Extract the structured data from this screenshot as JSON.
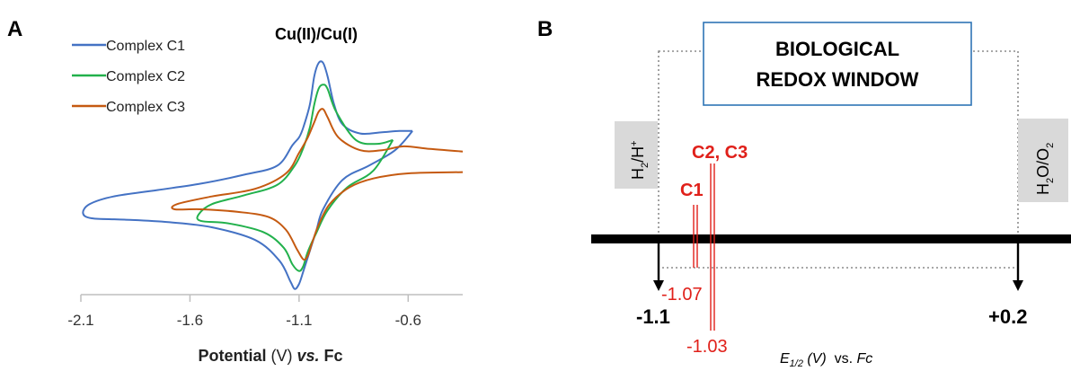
{
  "panel_a": {
    "label": "A",
    "title": "Cu(II)/Cu(I)",
    "xlabel_bold": "Potential",
    "xlabel_unit": " (V) ",
    "xlabel_vs": "vs.",
    "xlabel_ref": " Fc"
  },
  "panel_b": {
    "label": "B",
    "window_line1": "BIOLOGICAL",
    "window_line2": "REDOX WINDOW",
    "left_couple": "H2/H+",
    "right_couple": "H2O/O2",
    "left_limit": "-1.1",
    "right_limit": "+0.2",
    "marker_c1_label": "C1",
    "marker_c1_value": "-1.07",
    "marker_c23_label": "C2, C3",
    "marker_c23_value": "-1.03",
    "axis_caption_main": "E",
    "axis_caption_sub": "1/2",
    "axis_caption_unit": " (V)",
    "axis_caption_vs": "  vs. ",
    "axis_caption_ref": "Fc"
  },
  "colors": {
    "c1": "#4472c4",
    "c2": "#22b14c",
    "c3": "#c55a11",
    "marker": "#e0201a",
    "window_border": "#2e75b6",
    "couple_box": "#d9d9d9"
  },
  "chart_data": [
    {
      "type": "line",
      "subtype": "cyclic voltammogram",
      "title": "Cu(II)/Cu(I)",
      "xlabel": "Potential (V) vs. Fc",
      "ylabel": "",
      "xlim": [
        -2.1,
        -0.35
      ],
      "xticks": [
        -2.1,
        -1.6,
        -1.1,
        -0.6
      ],
      "legend_position": "top-left",
      "series": [
        {
          "name": "Complex C1",
          "color": "#4472c4",
          "x": [
            -0.58,
            -0.64,
            -0.72,
            -0.82,
            -0.9,
            -0.94,
            -0.97,
            -0.99,
            -1.01,
            -1.03,
            -1.05,
            -1.08,
            -1.1,
            -1.13,
            -1.2,
            -1.35,
            -1.55,
            -1.75,
            -1.95,
            -2.06,
            -2.09,
            -2.05,
            -1.9,
            -1.7,
            -1.5,
            -1.3,
            -1.19,
            -1.14,
            -1.12,
            -1.1,
            -1.08,
            -1.05,
            -1.02,
            -0.99,
            -0.9,
            -0.78,
            -0.66,
            -0.58
          ],
          "y": [
            0.47,
            0.47,
            0.46,
            0.45,
            0.52,
            0.68,
            0.9,
            1.0,
            1.0,
            0.9,
            0.68,
            0.5,
            0.42,
            0.36,
            0.2,
            0.13,
            0.06,
            0.01,
            -0.04,
            -0.1,
            -0.17,
            -0.21,
            -0.22,
            -0.24,
            -0.28,
            -0.38,
            -0.54,
            -0.7,
            -0.76,
            -0.72,
            -0.62,
            -0.46,
            -0.3,
            -0.14,
            0.09,
            0.2,
            0.32,
            0.47
          ]
        },
        {
          "name": "Complex C2",
          "color": "#22b14c",
          "x": [
            -0.67,
            -0.74,
            -0.84,
            -0.93,
            -0.97,
            -0.99,
            -1.01,
            -1.03,
            -1.05,
            -1.08,
            -1.12,
            -1.2,
            -1.35,
            -1.5,
            -1.56,
            -1.55,
            -1.42,
            -1.26,
            -1.17,
            -1.13,
            -1.1,
            -1.08,
            -1.06,
            -1.02,
            -0.97,
            -0.88,
            -0.76,
            -0.67
          ],
          "y": [
            0.4,
            0.37,
            0.4,
            0.62,
            0.8,
            0.83,
            0.8,
            0.68,
            0.5,
            0.34,
            0.2,
            0.05,
            -0.03,
            -0.1,
            -0.18,
            -0.23,
            -0.25,
            -0.32,
            -0.44,
            -0.57,
            -0.62,
            -0.58,
            -0.47,
            -0.32,
            -0.15,
            0.03,
            0.16,
            0.4
          ]
        },
        {
          "name": "Complex C3",
          "color": "#c55a11",
          "x": [
            -0.35,
            -0.5,
            -0.62,
            -0.72,
            -0.82,
            -0.92,
            -0.97,
            -0.99,
            -1.01,
            -1.03,
            -1.06,
            -1.1,
            -1.16,
            -1.3,
            -1.5,
            -1.66,
            -1.67,
            -1.55,
            -1.38,
            -1.24,
            -1.16,
            -1.11,
            -1.08,
            -1.06,
            -1.04,
            -1.01,
            -0.96,
            -0.87,
            -0.76,
            -0.6,
            -0.35
          ],
          "y": [
            0.31,
            0.33,
            0.35,
            0.32,
            0.32,
            0.42,
            0.58,
            0.64,
            0.62,
            0.54,
            0.42,
            0.3,
            0.14,
            0.02,
            -0.04,
            -0.1,
            -0.14,
            -0.14,
            -0.16,
            -0.2,
            -0.3,
            -0.45,
            -0.53,
            -0.5,
            -0.4,
            -0.26,
            -0.1,
            0.03,
            0.1,
            0.14,
            0.15
          ]
        }
      ]
    },
    {
      "type": "scatter",
      "subtype": "potential scale",
      "xlabel": "E1/2 (V) vs. Fc",
      "xlim": [
        -1.1,
        0.2
      ],
      "limits": [
        {
          "label": "-1.1",
          "value": -1.1,
          "couple": "H2/H+"
        },
        {
          "label": "+0.2",
          "value": 0.2,
          "couple": "H2O/O2"
        }
      ],
      "markers": [
        {
          "name": "C1",
          "value": -1.07
        },
        {
          "name": "C2, C3",
          "value": -1.03
        }
      ],
      "window": "BIOLOGICAL REDOX WINDOW"
    }
  ]
}
